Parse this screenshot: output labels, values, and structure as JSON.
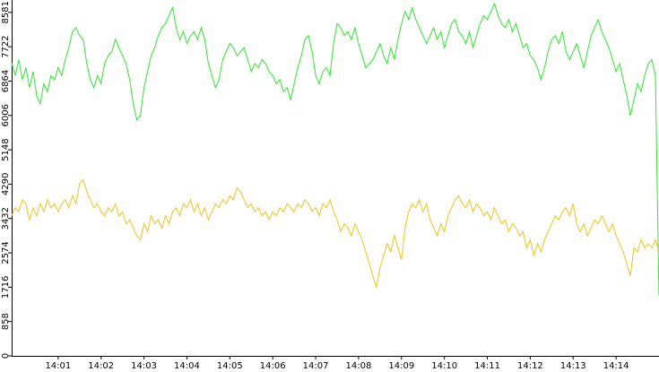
{
  "chart_data": {
    "type": "line",
    "categories": [
      null,
      null,
      null,
      null,
      null,
      null,
      null,
      null,
      null,
      null,
      null,
      null,
      null,
      "14:01",
      null,
      null,
      null,
      null,
      null,
      null,
      null,
      null,
      null,
      null,
      null,
      "14:02",
      null,
      null,
      null,
      null,
      null,
      null,
      null,
      null,
      null,
      null,
      null,
      "14:03",
      null,
      null,
      null,
      null,
      null,
      null,
      null,
      null,
      null,
      null,
      null,
      "14:04",
      null,
      null,
      null,
      null,
      null,
      null,
      null,
      null,
      null,
      null,
      null,
      "14:05",
      null,
      null,
      null,
      null,
      null,
      null,
      null,
      null,
      null,
      null,
      null,
      "14:06",
      null,
      null,
      null,
      null,
      null,
      null,
      null,
      null,
      null,
      null,
      null,
      "14:07",
      null,
      null,
      null,
      null,
      null,
      null,
      null,
      null,
      null,
      null,
      null,
      "14:08",
      null,
      null,
      null,
      null,
      null,
      null,
      null,
      null,
      null,
      null,
      null,
      "14:09",
      null,
      null,
      null,
      null,
      null,
      null,
      null,
      null,
      null,
      null,
      null,
      "14:10",
      null,
      null,
      null,
      null,
      null,
      null,
      null,
      null,
      null,
      null,
      null,
      "14:11",
      null,
      null,
      null,
      null,
      null,
      null,
      null,
      null,
      null,
      null,
      null,
      "14:12",
      null,
      null,
      null,
      null,
      null,
      null,
      null,
      null,
      null,
      null,
      null,
      "14:13",
      null,
      null,
      null,
      null,
      null,
      null,
      null,
      null,
      null,
      null,
      null,
      "14:14",
      null,
      null,
      null,
      null,
      null,
      null,
      null,
      null,
      null,
      null,
      null,
      null
    ],
    "series": [
      {
        "color": "#2ee62e",
        "values": [
          7322,
          7000,
          7400,
          6900,
          7200,
          6700,
          7100,
          6500,
          6300,
          6800,
          6600,
          7000,
          6900,
          7200,
          7000,
          7400,
          7700,
          8100,
          8200,
          8000,
          7900,
          7300,
          6900,
          6700,
          7000,
          6800,
          7300,
          7500,
          7600,
          7900,
          7700,
          7500,
          7300,
          6900,
          6300,
          5900,
          6000,
          6700,
          7100,
          7500,
          7700,
          8000,
          8200,
          8300,
          8500,
          8700,
          8200,
          7900,
          8100,
          7800,
          8000,
          8100,
          7900,
          8200,
          7900,
          7300,
          7000,
          6700,
          6900,
          7400,
          7600,
          7800,
          7700,
          7500,
          7600,
          7700,
          7400,
          7100,
          7300,
          7200,
          7400,
          7300,
          7100,
          7000,
          6800,
          6900,
          6600,
          6700,
          6400,
          6800,
          7200,
          7500,
          7900,
          8000,
          7600,
          7000,
          6800,
          7100,
          7200,
          7000,
          7800,
          8300,
          8200,
          8000,
          8100,
          7900,
          8200,
          7800,
          7500,
          7200,
          7300,
          7400,
          7600,
          7800,
          7500,
          7300,
          7700,
          7400,
          7900,
          8300,
          8600,
          8400,
          8700,
          8400,
          8200,
          8000,
          7800,
          8000,
          8200,
          7900,
          8100,
          7700,
          8000,
          8300,
          8400,
          8100,
          8000,
          7800,
          8100,
          7700,
          8000,
          8300,
          8500,
          8400,
          8600,
          8800,
          8500,
          8300,
          8200,
          8400,
          8100,
          8300,
          8000,
          7700,
          7800,
          7500,
          7400,
          7200,
          6900,
          7200,
          7600,
          7900,
          8000,
          7800,
          8100,
          7600,
          7400,
          7600,
          7800,
          7500,
          7200,
          7600,
          8000,
          8200,
          8400,
          8100,
          7900,
          7700,
          7400,
          7100,
          7300,
          6900,
          6500,
          6000,
          6400,
          6800,
          6600,
          7000,
          7300,
          7400,
          7000,
          1500
        ]
      },
      {
        "color": "#f2c218",
        "values": [
          3500,
          3700,
          3600,
          3900,
          3800,
          3400,
          3700,
          3500,
          3800,
          3600,
          3900,
          3700,
          3800,
          3600,
          3800,
          3900,
          3700,
          4000,
          3800,
          4300,
          4400,
          4100,
          3900,
          3700,
          3800,
          3600,
          3500,
          3700,
          3600,
          3800,
          3500,
          3600,
          3300,
          3400,
          3200,
          3000,
          2900,
          3300,
          3100,
          3500,
          3300,
          3400,
          3200,
          3500,
          3300,
          3600,
          3700,
          3500,
          3800,
          3700,
          3900,
          3600,
          3800,
          3500,
          3700,
          3400,
          3600,
          3800,
          3700,
          3900,
          3800,
          4000,
          3900,
          4200,
          4100,
          3900,
          3700,
          3800,
          3600,
          3700,
          3500,
          3600,
          3400,
          3600,
          3500,
          3700,
          3600,
          3800,
          3700,
          3600,
          3800,
          3700,
          3900,
          3800,
          3600,
          3700,
          3500,
          3800,
          3700,
          3900,
          3600,
          3400,
          3100,
          3300,
          3200,
          3000,
          3300,
          3100,
          2900,
          2600,
          2300,
          2000,
          1700,
          2200,
          2500,
          2800,
          2600,
          3000,
          2700,
          2400,
          3200,
          3600,
          3800,
          3700,
          3900,
          3600,
          3800,
          3400,
          3200,
          3000,
          3300,
          3100,
          3500,
          3700,
          3900,
          4000,
          3800,
          3700,
          3900,
          3600,
          3800,
          3700,
          3500,
          3600,
          3400,
          3700,
          3500,
          3300,
          3400,
          3100,
          3300,
          3200,
          3000,
          3100,
          2700,
          2900,
          2500,
          2800,
          2600,
          2900,
          3100,
          3300,
          3500,
          3400,
          3600,
          3700,
          3500,
          3800,
          3300,
          3100,
          3300,
          3000,
          3200,
          3400,
          3300,
          3500,
          3300,
          3100,
          3300,
          3000,
          2800,
          2600,
          2300,
          2000,
          2700,
          2600,
          2900,
          2700,
          2800,
          2700,
          2900,
          2600
        ]
      }
    ],
    "ylim": [
      0,
      8890
    ],
    "yticks": [
      0,
      858,
      1716,
      2574,
      3432,
      4290,
      5148,
      6006,
      6864,
      7722,
      8581
    ]
  }
}
